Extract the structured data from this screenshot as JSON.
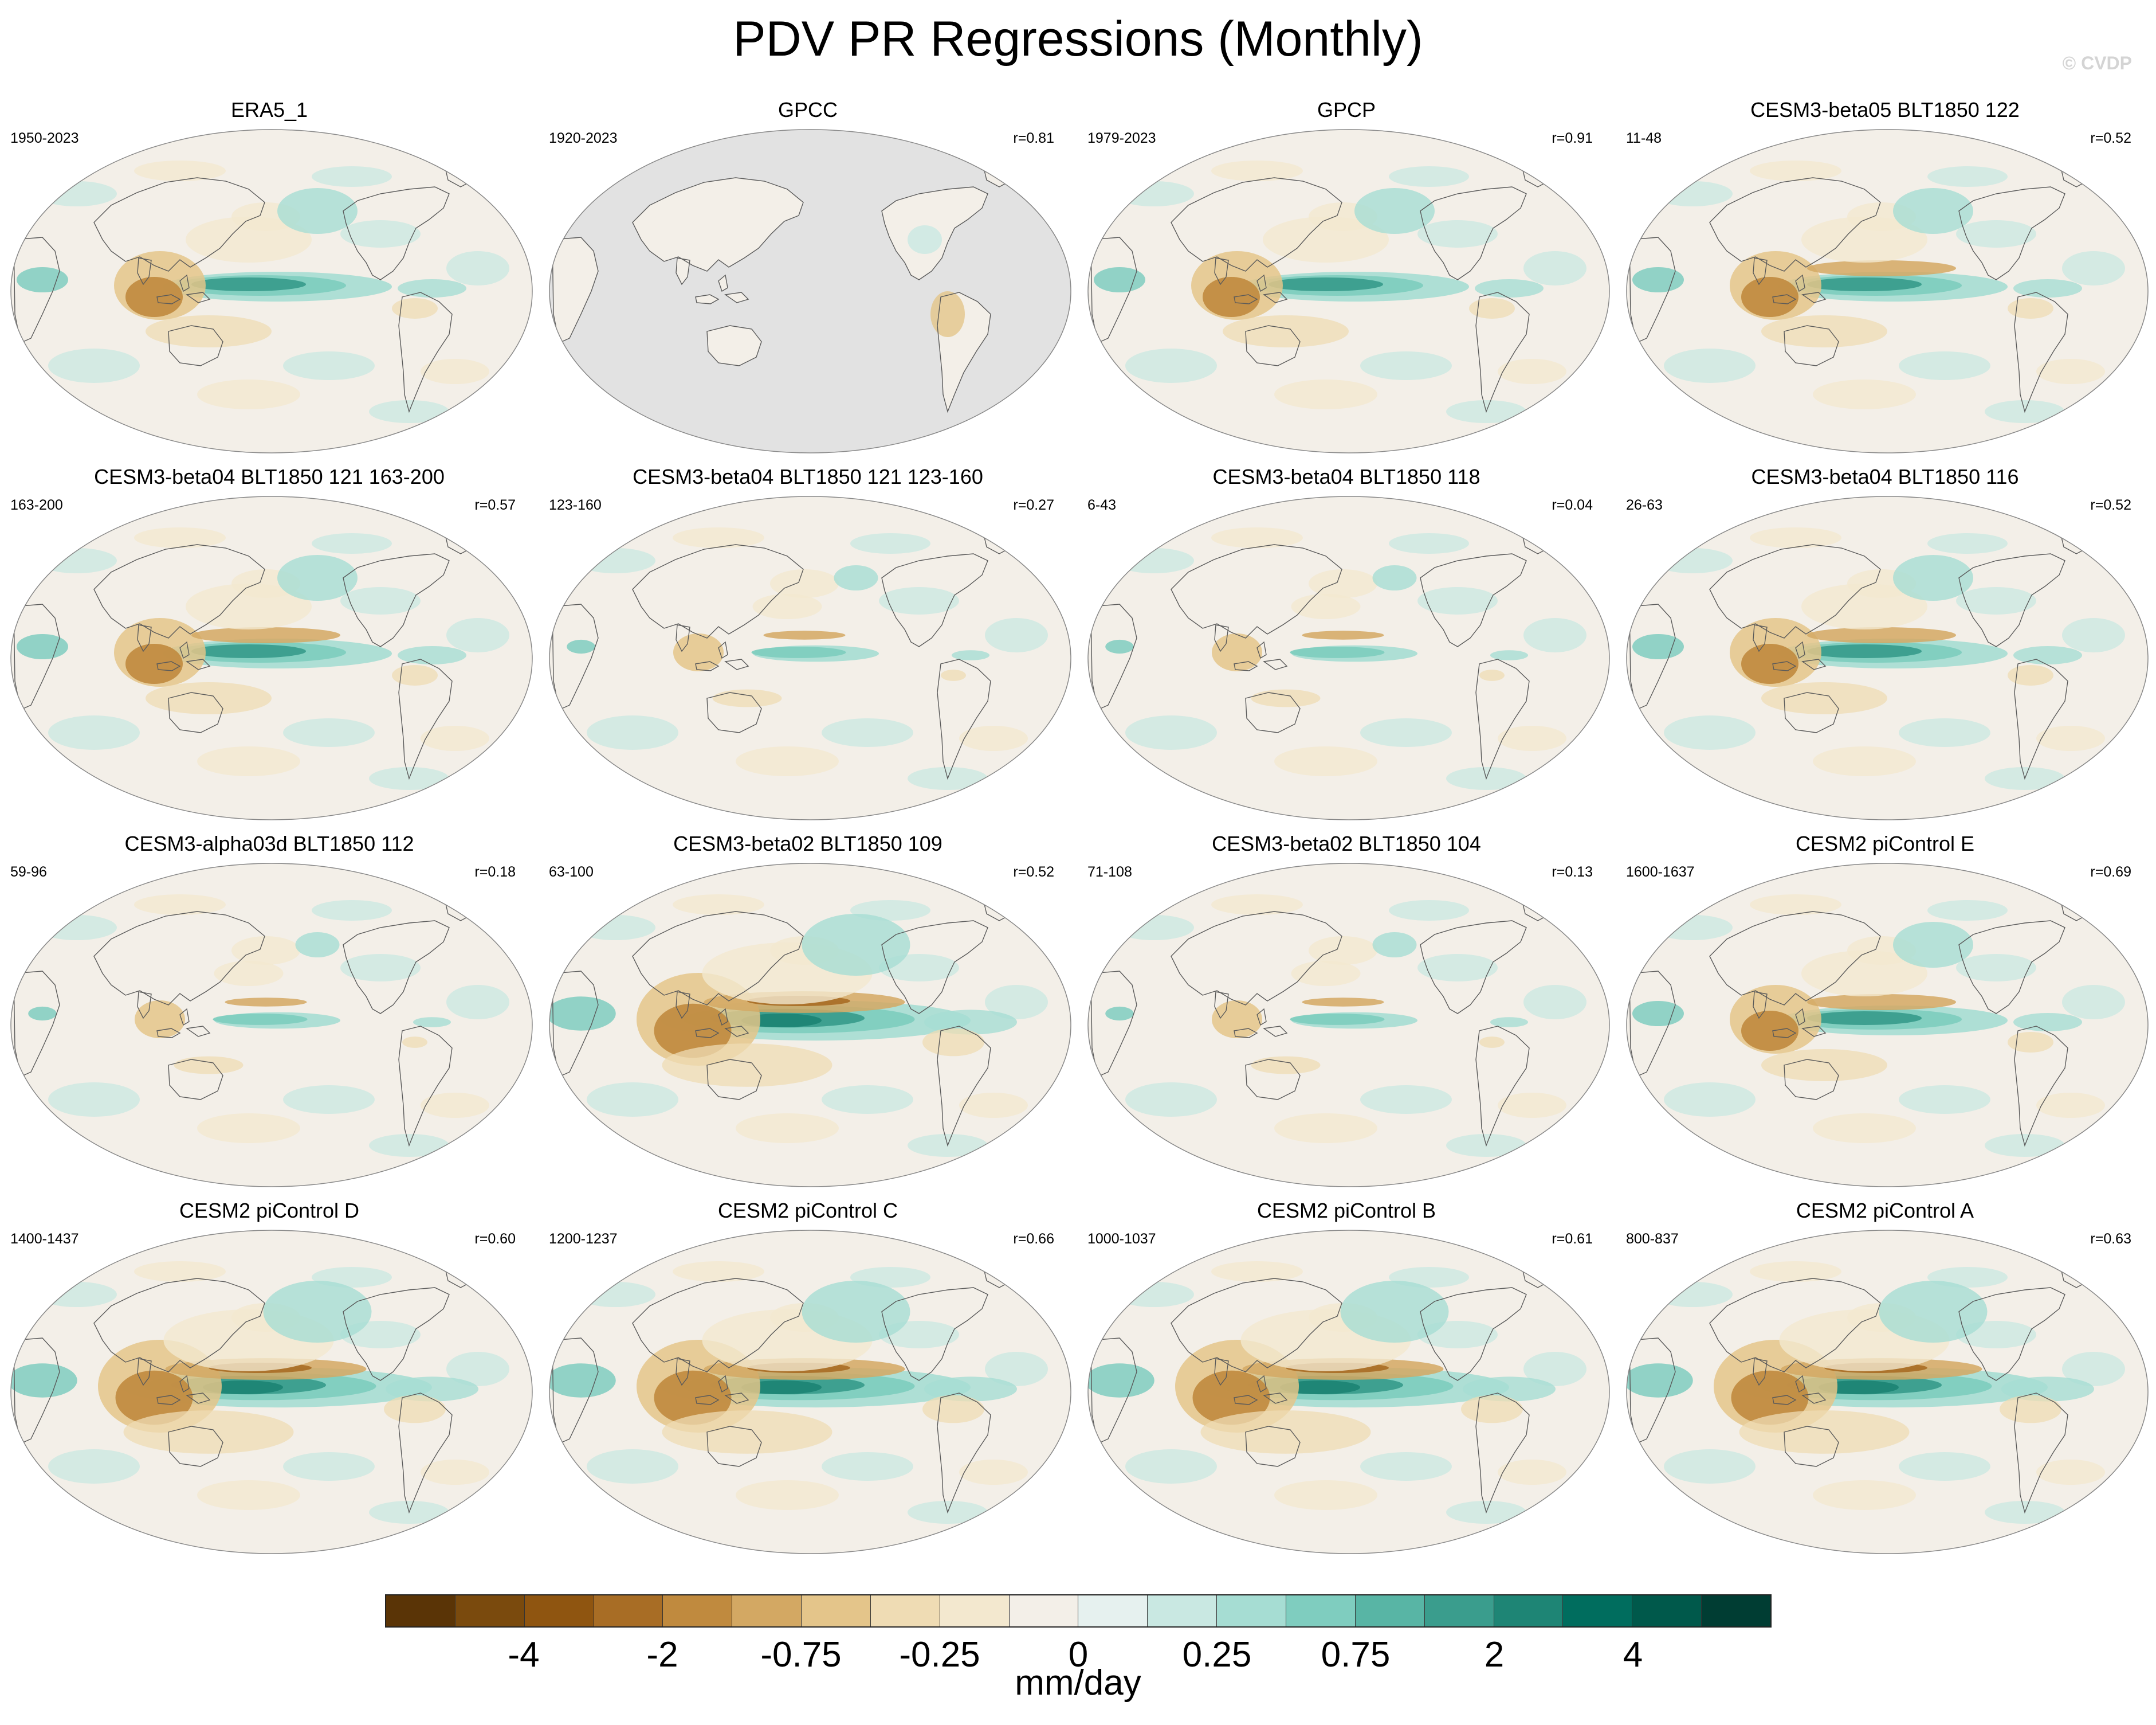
{
  "title": "PDV PR Regressions (Monthly)",
  "watermark": "© CVDP",
  "panels": [
    {
      "name": "ERA5_1",
      "period": "1950-2023",
      "r": "",
      "mask": false,
      "pattern": "obs"
    },
    {
      "name": "GPCC",
      "period": "1920-2023",
      "r": "r=0.81",
      "mask": true,
      "pattern": "land"
    },
    {
      "name": "GPCP",
      "period": "1979-2023",
      "r": "r=0.91",
      "mask": false,
      "pattern": "obs"
    },
    {
      "name": "CESM3-beta05 BLT1850 122",
      "period": "11-48",
      "r": "r=0.52",
      "mask": false,
      "pattern": "split"
    },
    {
      "name": "CESM3-beta04 BLT1850 121 163-200",
      "period": "163-200",
      "r": "r=0.57",
      "mask": false,
      "pattern": "split"
    },
    {
      "name": "CESM3-beta04 BLT1850 121 123-160",
      "period": "123-160",
      "r": "r=0.27",
      "mask": false,
      "pattern": "weak"
    },
    {
      "name": "CESM3-beta04 BLT1850 118",
      "period": "6-43",
      "r": "r=0.04",
      "mask": false,
      "pattern": "weak"
    },
    {
      "name": "CESM3-beta04 BLT1850 116",
      "period": "26-63",
      "r": "r=0.52",
      "mask": false,
      "pattern": "split"
    },
    {
      "name": "CESM3-alpha03d BLT1850 112",
      "period": "59-96",
      "r": "r=0.18",
      "mask": false,
      "pattern": "weak"
    },
    {
      "name": "CESM3-beta02 BLT1850 109",
      "period": "63-100",
      "r": "r=0.52",
      "mask": false,
      "pattern": "strong"
    },
    {
      "name": "CESM3-beta02 BLT1850 104",
      "period": "71-108",
      "r": "r=0.13",
      "mask": false,
      "pattern": "weak"
    },
    {
      "name": "CESM2 piControl E",
      "period": "1600-1637",
      "r": "r=0.69",
      "mask": false,
      "pattern": "split"
    },
    {
      "name": "CESM2 piControl D",
      "period": "1400-1437",
      "r": "r=0.60",
      "mask": false,
      "pattern": "strong"
    },
    {
      "name": "CESM2 piControl C",
      "period": "1200-1237",
      "r": "r=0.66",
      "mask": false,
      "pattern": "strong"
    },
    {
      "name": "CESM2 piControl B",
      "period": "1000-1037",
      "r": "r=0.61",
      "mask": false,
      "pattern": "strong"
    },
    {
      "name": "CESM2 piControl A",
      "period": "800-837",
      "r": "r=0.63",
      "mask": false,
      "pattern": "strong"
    }
  ],
  "colorbar": {
    "colors": [
      "#5a3406",
      "#7a4a0d",
      "#8f5510",
      "#a86d25",
      "#c08a3e",
      "#d3a863",
      "#e4c58a",
      "#efdcb4",
      "#f3e8cf",
      "#f3efe8",
      "#e6f1ef",
      "#c9e8e2",
      "#a6ddd3",
      "#7fcdbf",
      "#58b5a5",
      "#3a9d8d",
      "#1e8575",
      "#006d5e",
      "#00594b",
      "#003d33"
    ],
    "labels": [
      {
        "text": "-4",
        "boundary": 2
      },
      {
        "text": "-2",
        "boundary": 4
      },
      {
        "text": "-0.75",
        "boundary": 6
      },
      {
        "text": "-0.25",
        "boundary": 8
      },
      {
        "text": "0",
        "boundary": 10
      },
      {
        "text": "0.25",
        "boundary": 12
      },
      {
        "text": "0.75",
        "boundary": 14
      },
      {
        "text": "2",
        "boundary": 16
      },
      {
        "text": "4",
        "boundary": 18
      }
    ],
    "units": "mm/day"
  }
}
